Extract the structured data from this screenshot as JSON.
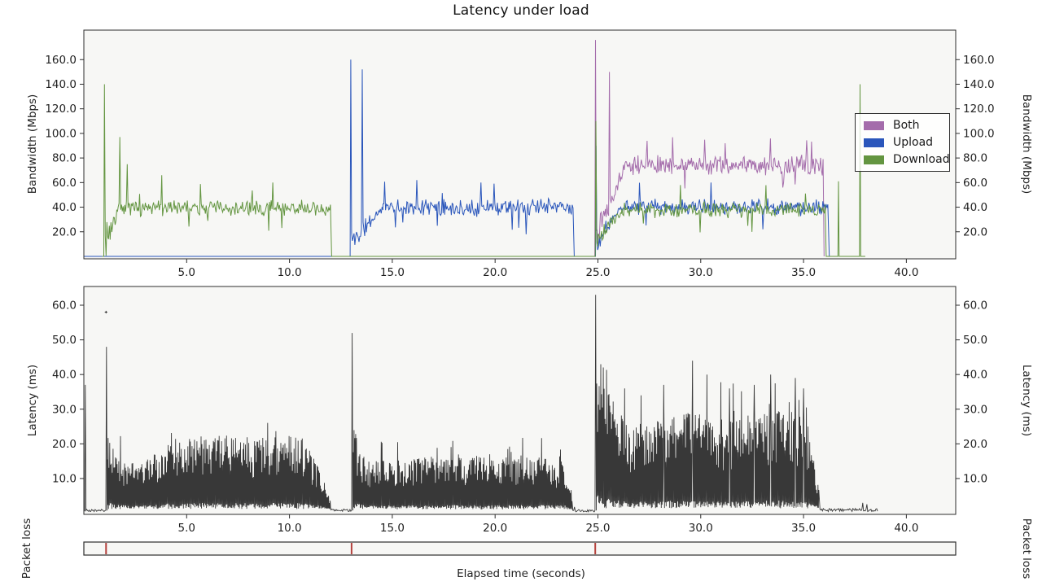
{
  "title": "Latency under load",
  "xlabel": "Elapsed time (seconds)",
  "colors": {
    "both": "#a46cab",
    "upload": "#2a56bb",
    "download": "#639540",
    "latency": "#383838",
    "packet_loss_event": "#b5423d",
    "spine": "#2d2d2d",
    "panel_bg": "#f7f7f5",
    "tick_text": "#1f1f1f"
  },
  "legend": {
    "position": "top-right",
    "items": [
      {
        "label": "Both",
        "color": "both"
      },
      {
        "label": "Upload",
        "color": "upload"
      },
      {
        "label": "Download",
        "color": "download"
      }
    ]
  },
  "chart_data": [
    {
      "id": "bandwidth",
      "type": "line",
      "ylabel_left": "Bandwidth (Mbps)",
      "ylabel_right": "Bandwidth (Mbps)",
      "ylim": [
        -2,
        184
      ],
      "yticks": [
        20,
        40,
        60,
        80,
        100,
        120,
        140,
        160
      ],
      "xlim": [
        0,
        42.4
      ],
      "xticks": [
        5,
        10,
        15,
        20,
        25,
        30,
        35,
        40
      ],
      "grid": false,
      "x_tick_labels": true,
      "series": [
        {
          "name": "Both",
          "color": "both",
          "seed": 13,
          "segments": [
            {
              "kind": "burst",
              "t0": 24.85,
              "peak": 176,
              "peak2": 150,
              "peak2_at": 0.7,
              "dur": 1.5,
              "mean": 74,
              "noise": 7
            },
            {
              "kind": "steady",
              "t0": 26.35,
              "t1": 35.95,
              "mean": 74,
              "noise": 6,
              "spikes": [
                [
                  27.4,
                  94
                ],
                [
                  31.2,
                  92
                ],
                [
                  34.0,
                  56
                ]
              ]
            },
            {
              "kind": "drop",
              "t": 36.0
            }
          ]
        },
        {
          "name": "Upload",
          "color": "upload",
          "seed": 11,
          "segments": [
            {
              "kind": "zero",
              "t0": 0.0,
              "t1": 12.9
            },
            {
              "kind": "burst",
              "t0": 12.95,
              "peak": 160,
              "peak2": 152,
              "peak2_at": 0.6,
              "dur": 1.6,
              "mean": 40,
              "noise": 6
            },
            {
              "kind": "steady",
              "t0": 14.55,
              "t1": 23.8,
              "mean": 40,
              "noise": 5.5,
              "spikes": [
                [
                  16.2,
                  62
                ],
                [
                  19.3,
                  60
                ],
                [
                  21.5,
                  18
                ]
              ]
            },
            {
              "kind": "drop",
              "t": 23.85
            },
            {
              "kind": "zero",
              "t0": 23.9,
              "t1": 24.82
            },
            {
              "kind": "burst",
              "t0": 24.88,
              "peak": 90,
              "peak2": null,
              "peak2_at": 0,
              "dur": 1.3,
              "mean": 40,
              "noise": 5
            },
            {
              "kind": "steady",
              "t0": 26.18,
              "t1": 36.2,
              "mean": 40,
              "noise": 5,
              "spikes": [
                [
                  30.5,
                  60
                ],
                [
                  33.0,
                  22
                ]
              ]
            },
            {
              "kind": "drop",
              "t": 36.25
            },
            {
              "kind": "zero",
              "t0": 36.3,
              "t1": 36.5
            }
          ]
        },
        {
          "name": "Download",
          "color": "download",
          "seed": 7,
          "segments": [
            {
              "kind": "zero",
              "t0": 0.9,
              "t1": 0.95
            },
            {
              "kind": "burst",
              "t0": 0.97,
              "peak": 140,
              "peak2": null,
              "peak2_at": 0,
              "dur": 0.7,
              "mean": 38,
              "noise": 9
            },
            {
              "kind": "steady",
              "t0": 1.67,
              "t1": 12.0,
              "mean": 39,
              "noise": 5,
              "spikes": [
                [
                  1.75,
                  97
                ],
                [
                  2.1,
                  75
                ],
                [
                  3.8,
                  66
                ],
                [
                  9.2,
                  60
                ]
              ]
            },
            {
              "kind": "drop",
              "t": 12.05
            },
            {
              "kind": "zero",
              "t0": 12.1,
              "t1": 24.82
            },
            {
              "kind": "burst",
              "t0": 24.87,
              "peak": 110,
              "peak2": null,
              "peak2_at": 0,
              "dur": 1.3,
              "mean": 38,
              "noise": 5
            },
            {
              "kind": "steady",
              "t0": 26.17,
              "t1": 36.05,
              "mean": 38,
              "noise": 5,
              "spikes": [
                [
                  29.0,
                  58
                ],
                [
                  32.5,
                  20
                ]
              ]
            },
            {
              "kind": "drop",
              "t": 36.1
            },
            {
              "kind": "zero",
              "t0": 36.15,
              "t1": 36.65
            },
            {
              "kind": "spike",
              "t": 36.7,
              "peak": 61,
              "base": 0
            },
            {
              "kind": "zero",
              "t0": 36.75,
              "t1": 37.7
            },
            {
              "kind": "spike",
              "t": 37.75,
              "peak": 140,
              "base": 0
            },
            {
              "kind": "zero",
              "t0": 37.8,
              "t1": 38.0
            }
          ]
        }
      ]
    },
    {
      "id": "latency",
      "type": "line",
      "ylabel_left": "Latency (ms)",
      "ylabel_right": "Latency (ms)",
      "ylim": [
        -0.35,
        65.4
      ],
      "yticks": [
        10,
        20,
        30,
        40,
        50,
        60
      ],
      "xlim": [
        0,
        42.4
      ],
      "xticks": [
        5,
        10,
        15,
        20,
        25,
        30,
        35,
        40
      ],
      "grid": false,
      "x_tick_labels": true,
      "series": [
        {
          "name": "Latency",
          "color": "latency",
          "seed": 21,
          "segments": [
            {
              "kind": "flatlow",
              "t0": 0.0,
              "t1": 0.05,
              "base": 0.8
            },
            {
              "kind": "spike",
              "t": 0.07,
              "peak": 37,
              "base": 0.8
            },
            {
              "kind": "flatlow",
              "t0": 0.1,
              "t1": 1.05,
              "base": 0.8
            },
            {
              "kind": "spike",
              "t": 1.1,
              "peak": 48,
              "base": 0.8
            },
            {
              "kind": "mass",
              "t0": 1.14,
              "t1": 12.0,
              "base": 1.2,
              "spikiness": 0.55,
              "env": [
                [
                  1.2,
                  22
                ],
                [
                  1.9,
                  15
                ],
                [
                  2.7,
                  13
                ],
                [
                  4.2,
                  20
                ],
                [
                  6.0,
                  22
                ],
                [
                  8.0,
                  21
                ],
                [
                  9.5,
                  23
                ],
                [
                  10.8,
                  20
                ],
                [
                  11.5,
                  11
                ],
                [
                  12.0,
                  2.5
                ]
              ]
            },
            {
              "kind": "flatlow",
              "t0": 12.02,
              "t1": 13.0,
              "base": 0.8
            },
            {
              "kind": "spike",
              "t": 13.05,
              "peak": 52,
              "base": 0.8
            },
            {
              "kind": "mass",
              "t0": 13.1,
              "t1": 23.75,
              "base": 1.1,
              "spikiness": 0.5,
              "env": [
                [
                  13.15,
                  23
                ],
                [
                  13.7,
                  14
                ],
                [
                  14.8,
                  14
                ],
                [
                  16.5,
                  15
                ],
                [
                  18.0,
                  16
                ],
                [
                  20.0,
                  15
                ],
                [
                  22.0,
                  16
                ],
                [
                  23.4,
                  14
                ],
                [
                  23.75,
                  2.5
                ]
              ]
            },
            {
              "kind": "flatlow",
              "t0": 23.78,
              "t1": 24.84,
              "base": 0.7
            },
            {
              "kind": "spike",
              "t": 24.89,
              "peak": 63,
              "base": 0.8
            },
            {
              "kind": "mass",
              "t0": 24.94,
              "t1": 35.75,
              "base": 1.4,
              "spikiness": 0.8,
              "env": [
                [
                  25.0,
                  46
                ],
                [
                  25.3,
                  40
                ],
                [
                  25.8,
                  30
                ],
                [
                  26.5,
                  24
                ],
                [
                  27.5,
                  25
                ],
                [
                  28.5,
                  27
                ],
                [
                  29.5,
                  28
                ],
                [
                  30.5,
                  26
                ],
                [
                  31.5,
                  26
                ],
                [
                  32.5,
                  27
                ],
                [
                  33.5,
                  28
                ],
                [
                  34.5,
                  29
                ],
                [
                  35.2,
                  25
                ],
                [
                  35.75,
                  5
                ]
              ],
              "tall": [
                [
                  26.3,
                  36
                ],
                [
                  27.1,
                  34
                ],
                [
                  28.2,
                  37
                ],
                [
                  29.6,
                  44
                ],
                [
                  30.3,
                  40
                ],
                [
                  31.4,
                  36
                ],
                [
                  32.6,
                  37
                ],
                [
                  33.4,
                  40
                ],
                [
                  34.6,
                  39
                ],
                [
                  35.0,
                  36
                ]
              ]
            },
            {
              "kind": "flatlow",
              "t0": 35.8,
              "t1": 38.6,
              "base": 0.9
            }
          ]
        }
      ],
      "outlier_dot": {
        "t": 1.08,
        "ms": 58
      }
    },
    {
      "id": "packet_loss",
      "type": "event-ticks",
      "ylabel_left": "Packet loss",
      "ylabel_right": "Packet loss",
      "xlim": [
        0,
        42.4
      ],
      "events_t": [
        1.08,
        13.02,
        24.87
      ]
    }
  ]
}
